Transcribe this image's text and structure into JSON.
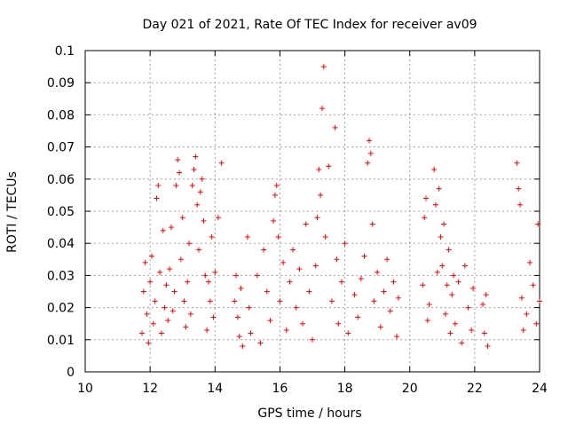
{
  "chart_data": {
    "type": "scatter",
    "title": "Day 021 of 2021, Rate Of TEC Index for receiver av09",
    "xlabel": "GPS time / hours",
    "ylabel": "ROTI / TECUs",
    "xlim": [
      10,
      24
    ],
    "ylim": [
      0,
      0.1
    ],
    "xticks": [
      "10",
      "12",
      "14",
      "16",
      "18",
      "20",
      "22",
      "24"
    ],
    "yticks": [
      "0",
      "0.01",
      "0.02",
      "0.03",
      "0.04",
      "0.05",
      "0.06",
      "0.07",
      "0.08",
      "0.09",
      "0.1"
    ],
    "grid": true,
    "marker": "plus",
    "color": "#ff0000",
    "series": [
      {
        "points": [
          [
            11.75,
            0.012
          ],
          [
            11.8,
            0.025
          ],
          [
            11.85,
            0.034
          ],
          [
            11.9,
            0.018
          ],
          [
            11.95,
            0.009
          ],
          [
            12.0,
            0.028
          ],
          [
            12.05,
            0.036
          ],
          [
            12.1,
            0.015
          ],
          [
            12.15,
            0.022
          ],
          [
            12.2,
            0.054
          ],
          [
            12.25,
            0.058
          ],
          [
            12.3,
            0.031
          ],
          [
            12.35,
            0.012
          ],
          [
            12.4,
            0.044
          ],
          [
            12.45,
            0.02
          ],
          [
            12.5,
            0.027
          ],
          [
            12.55,
            0.016
          ],
          [
            12.6,
            0.032
          ],
          [
            12.65,
            0.045
          ],
          [
            12.7,
            0.019
          ],
          [
            12.75,
            0.025
          ],
          [
            12.8,
            0.058
          ],
          [
            12.85,
            0.066
          ],
          [
            12.9,
            0.062
          ],
          [
            12.95,
            0.035
          ],
          [
            13.0,
            0.048
          ],
          [
            13.05,
            0.022
          ],
          [
            13.1,
            0.014
          ],
          [
            13.15,
            0.028
          ],
          [
            13.2,
            0.04
          ],
          [
            13.25,
            0.018
          ],
          [
            13.3,
            0.058
          ],
          [
            13.35,
            0.063
          ],
          [
            13.4,
            0.067
          ],
          [
            13.45,
            0.052
          ],
          [
            13.5,
            0.038
          ],
          [
            13.55,
            0.056
          ],
          [
            13.6,
            0.06
          ],
          [
            13.65,
            0.047
          ],
          [
            13.7,
            0.03
          ],
          [
            13.75,
            0.013
          ],
          [
            13.8,
            0.028
          ],
          [
            13.85,
            0.022
          ],
          [
            13.9,
            0.042
          ],
          [
            13.95,
            0.017
          ],
          [
            14.0,
            0.031
          ],
          [
            14.1,
            0.048
          ],
          [
            14.2,
            0.065
          ],
          [
            14.6,
            0.022
          ],
          [
            14.65,
            0.03
          ],
          [
            14.7,
            0.017
          ],
          [
            14.75,
            0.011
          ],
          [
            14.8,
            0.026
          ],
          [
            14.85,
            0.008
          ],
          [
            15.0,
            0.042
          ],
          [
            15.05,
            0.02
          ],
          [
            15.1,
            0.012
          ],
          [
            15.3,
            0.03
          ],
          [
            15.4,
            0.009
          ],
          [
            15.5,
            0.038
          ],
          [
            15.6,
            0.025
          ],
          [
            15.7,
            0.016
          ],
          [
            15.8,
            0.047
          ],
          [
            15.85,
            0.055
          ],
          [
            15.9,
            0.058
          ],
          [
            15.95,
            0.042
          ],
          [
            16.0,
            0.022
          ],
          [
            16.1,
            0.034
          ],
          [
            16.2,
            0.013
          ],
          [
            16.3,
            0.028
          ],
          [
            16.4,
            0.038
          ],
          [
            16.5,
            0.02
          ],
          [
            16.6,
            0.032
          ],
          [
            16.7,
            0.015
          ],
          [
            16.8,
            0.046
          ],
          [
            16.9,
            0.025
          ],
          [
            17.0,
            0.01
          ],
          [
            17.1,
            0.033
          ],
          [
            17.15,
            0.048
          ],
          [
            17.2,
            0.063
          ],
          [
            17.25,
            0.055
          ],
          [
            17.3,
            0.082
          ],
          [
            17.35,
            0.095
          ],
          [
            17.4,
            0.042
          ],
          [
            17.5,
            0.064
          ],
          [
            17.6,
            0.022
          ],
          [
            17.7,
            0.076
          ],
          [
            17.75,
            0.035
          ],
          [
            17.8,
            0.015
          ],
          [
            17.9,
            0.028
          ],
          [
            18.0,
            0.04
          ],
          [
            18.1,
            0.012
          ],
          [
            18.3,
            0.024
          ],
          [
            18.4,
            0.017
          ],
          [
            18.5,
            0.029
          ],
          [
            18.6,
            0.036
          ],
          [
            18.7,
            0.065
          ],
          [
            18.75,
            0.072
          ],
          [
            18.8,
            0.068
          ],
          [
            18.85,
            0.046
          ],
          [
            18.9,
            0.022
          ],
          [
            19.0,
            0.031
          ],
          [
            19.1,
            0.014
          ],
          [
            19.2,
            0.025
          ],
          [
            19.3,
            0.035
          ],
          [
            19.4,
            0.019
          ],
          [
            19.5,
            0.028
          ],
          [
            19.6,
            0.011
          ],
          [
            19.65,
            0.023
          ],
          [
            20.4,
            0.027
          ],
          [
            20.45,
            0.048
          ],
          [
            20.5,
            0.054
          ],
          [
            20.55,
            0.016
          ],
          [
            20.6,
            0.021
          ],
          [
            20.75,
            0.063
          ],
          [
            20.8,
            0.052
          ],
          [
            20.85,
            0.031
          ],
          [
            20.9,
            0.057
          ],
          [
            20.95,
            0.042
          ],
          [
            21.0,
            0.033
          ],
          [
            21.05,
            0.046
          ],
          [
            21.1,
            0.018
          ],
          [
            21.15,
            0.027
          ],
          [
            21.2,
            0.038
          ],
          [
            21.25,
            0.012
          ],
          [
            21.3,
            0.024
          ],
          [
            21.35,
            0.03
          ],
          [
            21.4,
            0.015
          ],
          [
            21.5,
            0.028
          ],
          [
            21.6,
            0.009
          ],
          [
            21.7,
            0.033
          ],
          [
            21.8,
            0.02
          ],
          [
            21.9,
            0.013
          ],
          [
            21.95,
            0.026
          ],
          [
            22.25,
            0.021
          ],
          [
            22.3,
            0.012
          ],
          [
            22.35,
            0.024
          ],
          [
            22.4,
            0.008
          ],
          [
            23.3,
            0.065
          ],
          [
            23.35,
            0.057
          ],
          [
            23.4,
            0.052
          ],
          [
            23.45,
            0.023
          ],
          [
            23.5,
            0.013
          ],
          [
            23.6,
            0.018
          ],
          [
            23.7,
            0.034
          ],
          [
            23.8,
            0.027
          ],
          [
            23.9,
            0.015
          ],
          [
            23.95,
            0.046
          ],
          [
            24.0,
            0.022
          ]
        ]
      }
    ]
  }
}
